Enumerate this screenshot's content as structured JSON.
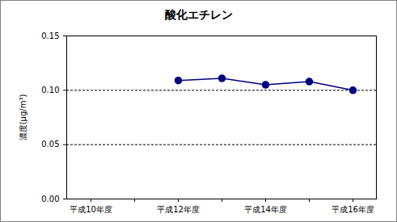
{
  "chart_data": {
    "type": "line",
    "title": "酸化エチレン",
    "y_label": "濃度(μg/m³)",
    "categories": [
      "平成10年度",
      null,
      "平成12年度",
      null,
      "平成14年度",
      null,
      "平成16年度"
    ],
    "series": [
      {
        "name": "酸化エチレン",
        "color": "#000080",
        "marker": "circle",
        "line_style": "solid",
        "values": [
          null,
          null,
          0.109,
          0.111,
          0.105,
          0.108,
          0.1
        ]
      }
    ],
    "ylim": [
      0,
      0.15
    ],
    "yticks": [
      {
        "value": 0,
        "label": "0.00"
      },
      {
        "value": 0.05,
        "label": "0.05"
      },
      {
        "value": 0.1,
        "label": "0.10"
      },
      {
        "value": 0.15,
        "label": "0.15"
      }
    ],
    "grid": true
  }
}
